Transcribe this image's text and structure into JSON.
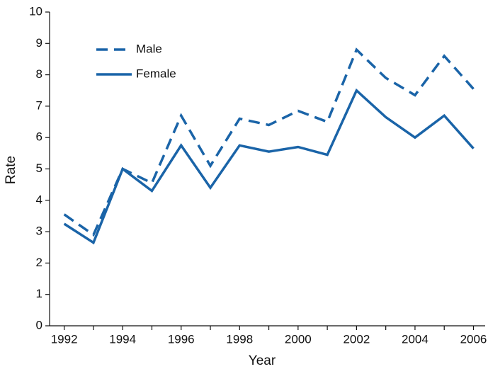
{
  "chart_data": {
    "type": "line",
    "x_label": "Year",
    "y_label": "Rate",
    "x": [
      1992,
      1993,
      1994,
      1995,
      1996,
      1997,
      1998,
      1999,
      2000,
      2001,
      2002,
      2003,
      2004,
      2005,
      2006
    ],
    "series": [
      {
        "name": "Male",
        "color": "#1a64a8",
        "dash": true,
        "values": [
          3.55,
          2.9,
          5.0,
          4.55,
          6.7,
          5.1,
          6.6,
          6.4,
          6.85,
          6.5,
          8.8,
          7.9,
          7.35,
          8.6,
          7.55
        ]
      },
      {
        "name": "Female",
        "color": "#1a64a8",
        "dash": false,
        "values": [
          3.25,
          2.65,
          5.0,
          4.3,
          5.75,
          4.4,
          5.75,
          5.55,
          5.7,
          5.45,
          7.5,
          6.65,
          6.0,
          6.7,
          5.65
        ]
      }
    ],
    "xlim": [
      1991.5,
      2006.4
    ],
    "xticks": [
      1992,
      1994,
      1996,
      1998,
      2000,
      2002,
      2004,
      2006
    ],
    "xminor_ticks": [
      1993,
      1995,
      1997,
      1999,
      2001,
      2003,
      2005
    ],
    "ylim": [
      0,
      10
    ],
    "yticks": [
      0,
      1,
      2,
      3,
      4,
      5,
      6,
      7,
      8,
      9,
      10
    ],
    "grid": false,
    "legend": "upper left"
  }
}
